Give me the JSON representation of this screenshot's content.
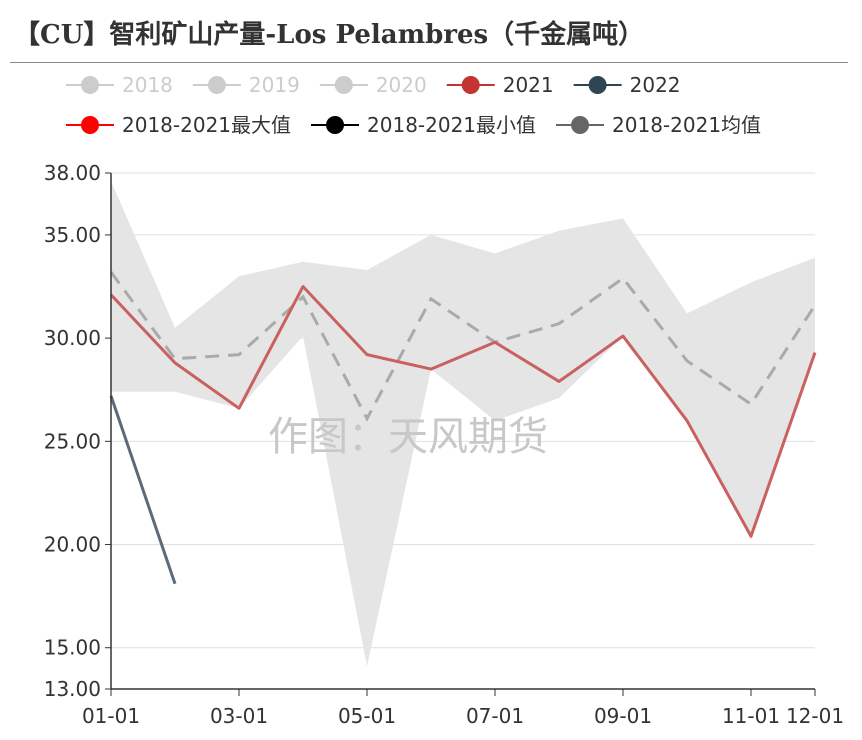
{
  "title": "【CU】智利矿山产量-Los Pelambres（千金属吨）",
  "watermark": "作图：天风期货",
  "chart_data": {
    "type": "line",
    "x_ticks": [
      "01-01",
      "03-01",
      "05-01",
      "07-01",
      "09-01",
      "11-01",
      "12-01"
    ],
    "y_ticks": [
      "13.00",
      "15.00",
      "20.00",
      "25.00",
      "30.00",
      "35.00",
      "38.00"
    ],
    "ylim": [
      13,
      38
    ],
    "months": [
      "01-01",
      "02-01",
      "03-01",
      "04-01",
      "05-01",
      "06-01",
      "07-01",
      "08-01",
      "09-01",
      "10-01",
      "11-01",
      "12-01"
    ],
    "legend": [
      {
        "name": "2018",
        "color": "#cccccc",
        "dimmed": true
      },
      {
        "name": "2019",
        "color": "#cccccc",
        "dimmed": true
      },
      {
        "name": "2020",
        "color": "#cccccc",
        "dimmed": true
      },
      {
        "name": "2021",
        "color": "#c23531",
        "dimmed": false
      },
      {
        "name": "2022",
        "color": "#2f4554",
        "dimmed": false
      },
      {
        "name": "2018-2021最大值",
        "color": "#ff0000",
        "dimmed": false
      },
      {
        "name": "2018-2021最小值",
        "color": "#000000",
        "dimmed": false
      },
      {
        "name": "2018-2021均值",
        "color": "#666666",
        "dimmed": false
      }
    ],
    "series": [
      {
        "name": "2021",
        "color": "#c8615f",
        "values": [
          32.1,
          28.8,
          26.6,
          32.5,
          29.2,
          28.5,
          29.8,
          27.9,
          30.1,
          26.0,
          20.4,
          29.3
        ]
      },
      {
        "name": "2022",
        "color": "#5b6b7a",
        "values": [
          27.2,
          18.1
        ]
      },
      {
        "name": "2018-2021最大值",
        "values": [
          37.6,
          30.5,
          33.0,
          33.7,
          33.3,
          35.0,
          34.1,
          35.2,
          35.8,
          31.2,
          32.7,
          33.9
        ]
      },
      {
        "name": "2018-2021最小值",
        "values": [
          27.4,
          27.4,
          26.6,
          30.1,
          14.1,
          28.5,
          26.0,
          27.1,
          30.1,
          26.0,
          20.4,
          29.3
        ]
      },
      {
        "name": "2018-2021均值",
        "color": "#aaaaaa",
        "values": [
          33.2,
          29.0,
          29.2,
          32.0,
          26.1,
          31.9,
          29.8,
          30.7,
          32.9,
          28.9,
          26.8,
          31.6
        ]
      }
    ]
  }
}
